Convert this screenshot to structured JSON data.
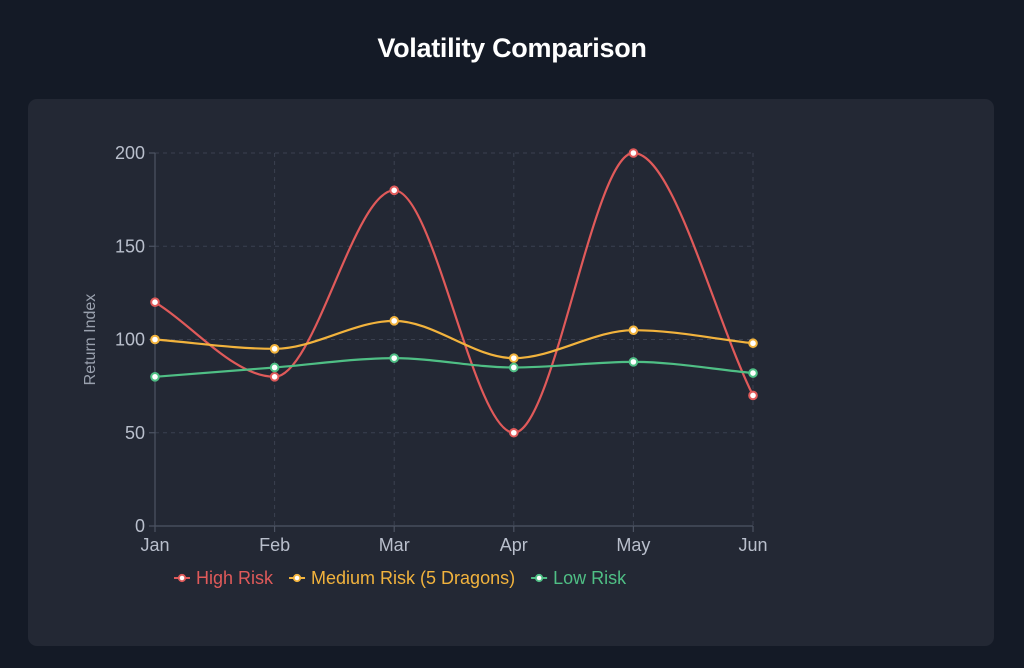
{
  "page": {
    "title": "Volatility Comparison"
  },
  "colors": {
    "background": "#141a26",
    "card": "#232834",
    "grid": "#3b4150",
    "axis": "#4d5463",
    "tick_text": "#b9bfcc",
    "axis_title": "#9aa1ae",
    "point_fill": "#ffffff"
  },
  "chart_data": {
    "type": "line",
    "title": "Volatility Comparison",
    "xlabel": "",
    "ylabel": "Return Index",
    "categories": [
      "Jan",
      "Feb",
      "Mar",
      "Apr",
      "May",
      "Jun"
    ],
    "ylim": [
      0,
      200
    ],
    "yticks": [
      0,
      50,
      100,
      150,
      200
    ],
    "grid": true,
    "legend_position": "bottom",
    "curve": "smooth",
    "series": [
      {
        "name": "High Risk",
        "color": "#e05a5a",
        "values": [
          120,
          80,
          180,
          50,
          200,
          70
        ]
      },
      {
        "name": "Medium Risk (5 Dragons)",
        "color": "#f2b33d",
        "values": [
          100,
          95,
          110,
          90,
          105,
          98
        ]
      },
      {
        "name": "Low Risk",
        "color": "#4fbf85",
        "values": [
          80,
          85,
          90,
          85,
          88,
          82
        ]
      }
    ]
  }
}
